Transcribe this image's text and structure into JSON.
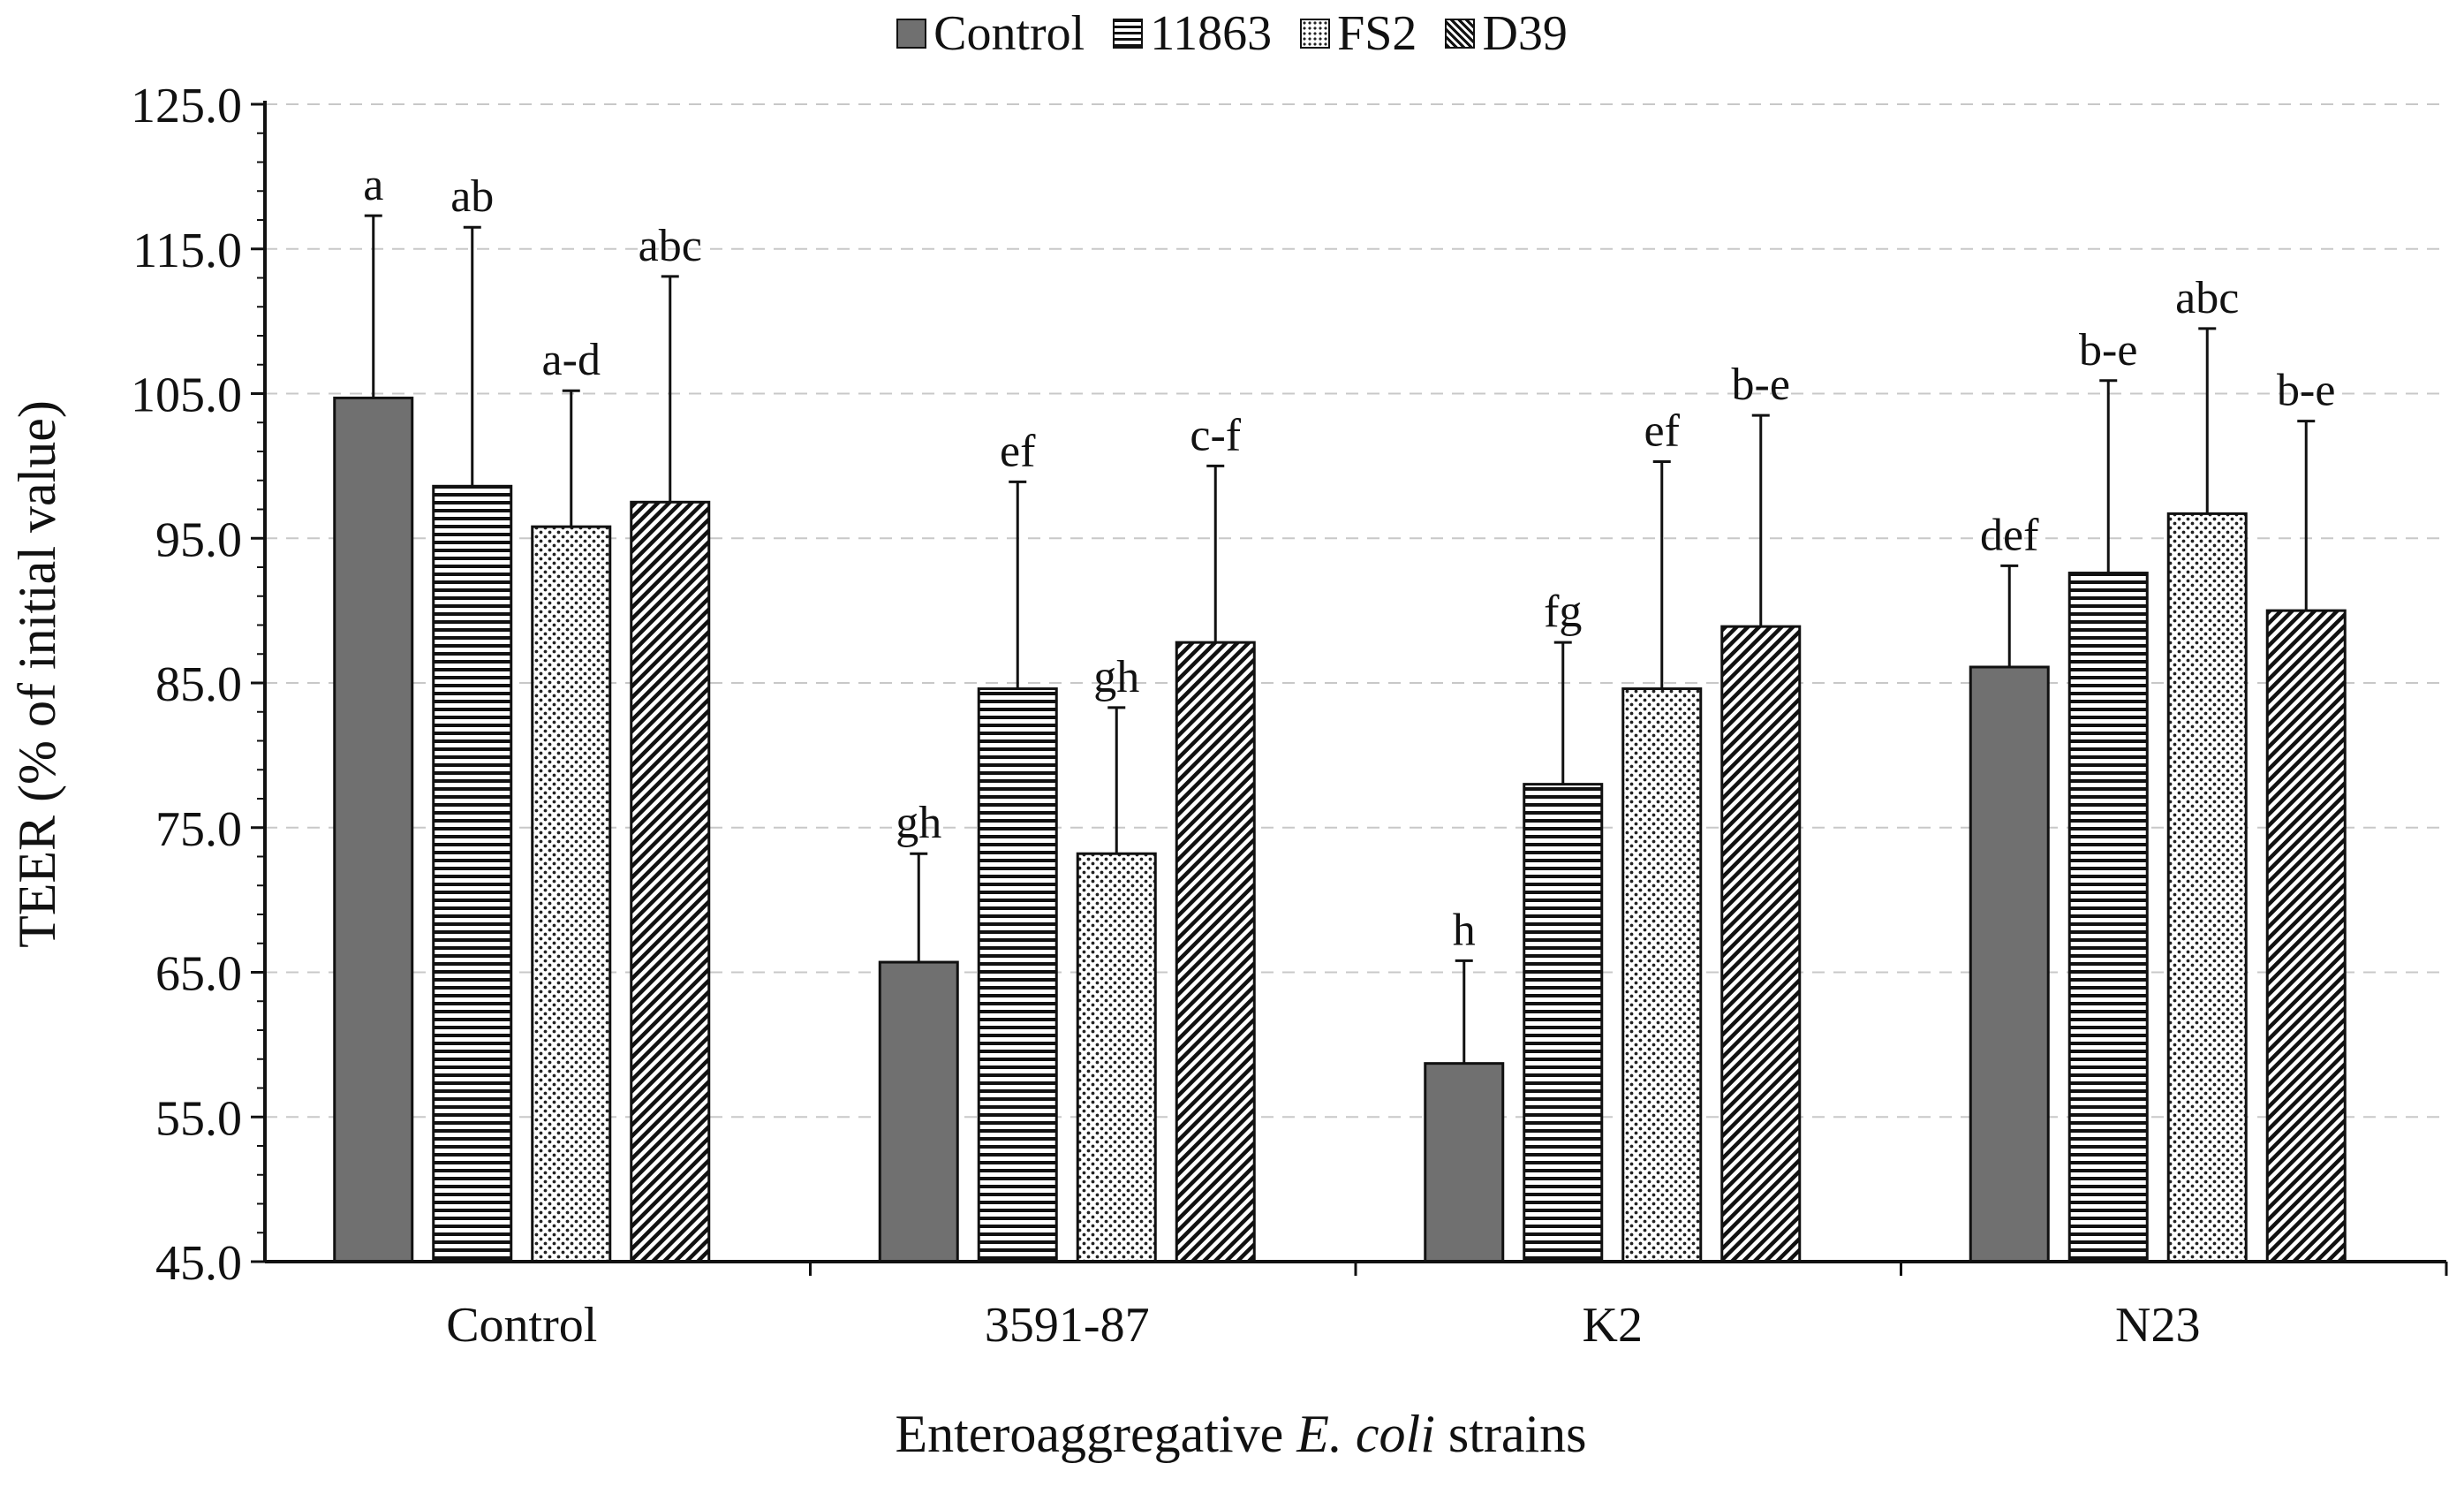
{
  "chart_data": {
    "type": "bar",
    "title": "",
    "xlabel_prefix": "Enteroaggregative ",
    "xlabel_italic": "E. coli",
    "xlabel_suffix": " strains",
    "ylabel": "TEER (% of initial value)",
    "ylim": [
      45,
      125
    ],
    "yticks": [
      "45.0",
      "55.0",
      "65.0",
      "75.0",
      "85.0",
      "95.0",
      "105.0",
      "115.0",
      "125.0"
    ],
    "grid": "horizontal dashed",
    "legend_position": "top-center",
    "categories": [
      "Control",
      "3591-87",
      "K2",
      "N23"
    ],
    "series": [
      {
        "name": "Control",
        "pattern": "solid",
        "values": [
          104.7,
          65.7,
          58.7,
          86.1
        ],
        "error": [
          12.6,
          7.5,
          7.1,
          7.0
        ],
        "labels": [
          "a",
          "gh",
          "h",
          "def"
        ]
      },
      {
        "name": "11863",
        "pattern": "horizontal",
        "values": [
          98.6,
          84.6,
          78.0,
          92.6
        ],
        "error": [
          17.9,
          14.3,
          9.8,
          13.3
        ],
        "labels": [
          "ab",
          "ef",
          "fg",
          "b-e"
        ]
      },
      {
        "name": "FS2",
        "pattern": "dots",
        "values": [
          95.8,
          73.2,
          84.6,
          96.7
        ],
        "error": [
          9.4,
          10.1,
          15.7,
          12.8
        ],
        "labels": [
          "a-d",
          "gh",
          "ef",
          "abc"
        ]
      },
      {
        "name": "D39",
        "pattern": "diagonal",
        "values": [
          97.5,
          87.8,
          88.9,
          90.0
        ],
        "error": [
          15.6,
          12.2,
          14.6,
          13.1
        ],
        "labels": [
          "abc",
          "c-f",
          "b-e",
          "b-e"
        ]
      }
    ]
  },
  "colors": {
    "control_fill": "#707070",
    "stroke": "#111111",
    "grid": "#c8c8c8"
  }
}
